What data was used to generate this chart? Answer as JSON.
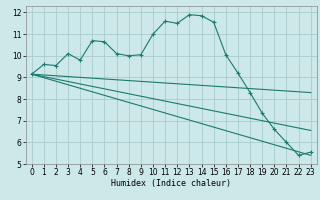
{
  "xlabel": "Humidex (Indice chaleur)",
  "ylabel": "",
  "bg_color": "#cce8e8",
  "grid_color": "#aacccc",
  "line_color": "#1a7a6e",
  "xlim": [
    -0.5,
    23.5
  ],
  "ylim": [
    5,
    12.3
  ],
  "xticks": [
    0,
    1,
    2,
    3,
    4,
    5,
    6,
    7,
    8,
    9,
    10,
    11,
    12,
    13,
    14,
    15,
    16,
    17,
    18,
    19,
    20,
    21,
    22,
    23
  ],
  "yticks": [
    5,
    6,
    7,
    8,
    9,
    10,
    11,
    12
  ],
  "series": [
    {
      "x": [
        0,
        1,
        2,
        3,
        4,
        5,
        6,
        7,
        8,
        9,
        10,
        11,
        12,
        13,
        14,
        15,
        16,
        17,
        18,
        19,
        20,
        21,
        22,
        23
      ],
      "y": [
        9.15,
        9.6,
        9.55,
        10.1,
        9.8,
        10.7,
        10.65,
        10.1,
        10.0,
        10.05,
        11.0,
        11.6,
        11.5,
        11.9,
        11.85,
        11.55,
        10.05,
        9.2,
        8.3,
        7.35,
        6.6,
        6.0,
        5.4,
        5.55
      ],
      "marker": "+"
    },
    {
      "x": [
        0,
        23
      ],
      "y": [
        9.15,
        8.3
      ],
      "marker": null
    },
    {
      "x": [
        0,
        23
      ],
      "y": [
        9.15,
        6.55
      ],
      "marker": null
    },
    {
      "x": [
        0,
        23
      ],
      "y": [
        9.15,
        5.4
      ],
      "marker": null
    }
  ]
}
